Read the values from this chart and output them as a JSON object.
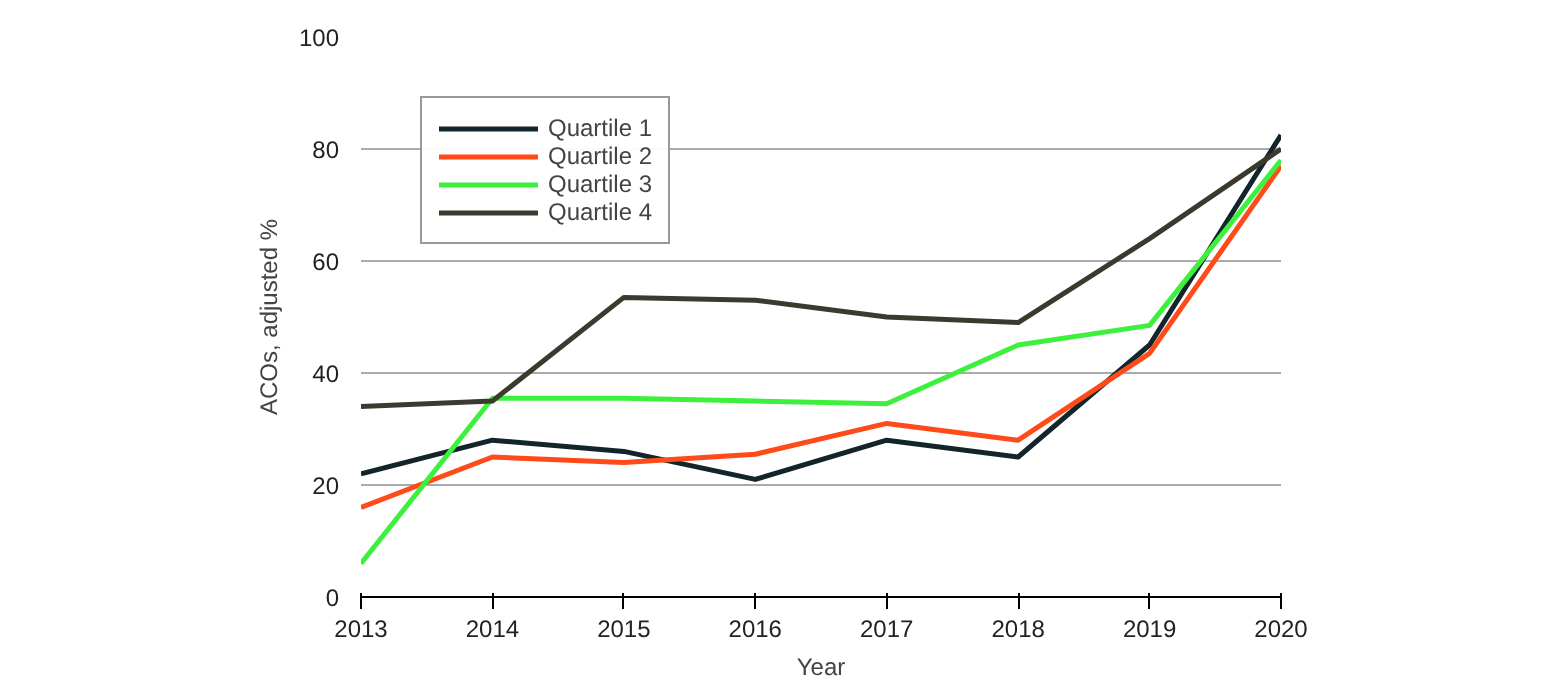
{
  "chart_data": {
    "type": "line",
    "xlabel": "Year",
    "ylabel": "ACOs, adjusted %",
    "x": [
      2013,
      2014,
      2015,
      2016,
      2017,
      2018,
      2019,
      2020
    ],
    "series": [
      {
        "name": "Quartile 1",
        "color": "#13242a",
        "values": [
          22,
          28,
          26,
          21,
          28,
          25,
          45,
          82.5
        ]
      },
      {
        "name": "Quartile 2",
        "color": "#ff4a1a",
        "values": [
          16,
          25,
          24,
          25.5,
          31,
          28,
          43.5,
          77
        ]
      },
      {
        "name": "Quartile 3",
        "color": "#3ef03e",
        "values": [
          6,
          35.5,
          35.5,
          35,
          34.5,
          45,
          48.5,
          78
        ]
      },
      {
        "name": "Quartile 4",
        "color": "#3b3a2e",
        "values": [
          34,
          35,
          53.5,
          53,
          50,
          49,
          64,
          80
        ]
      }
    ],
    "xlim": [
      2013,
      2020
    ],
    "xticks": [
      2013,
      2014,
      2015,
      2016,
      2017,
      2018,
      2019,
      2020
    ],
    "ylim": [
      0,
      100
    ],
    "yticks": [
      0,
      20,
      40,
      60,
      80,
      100
    ],
    "grid": "y",
    "legend": "top left",
    "marker": "none",
    "line_style": "solid"
  }
}
